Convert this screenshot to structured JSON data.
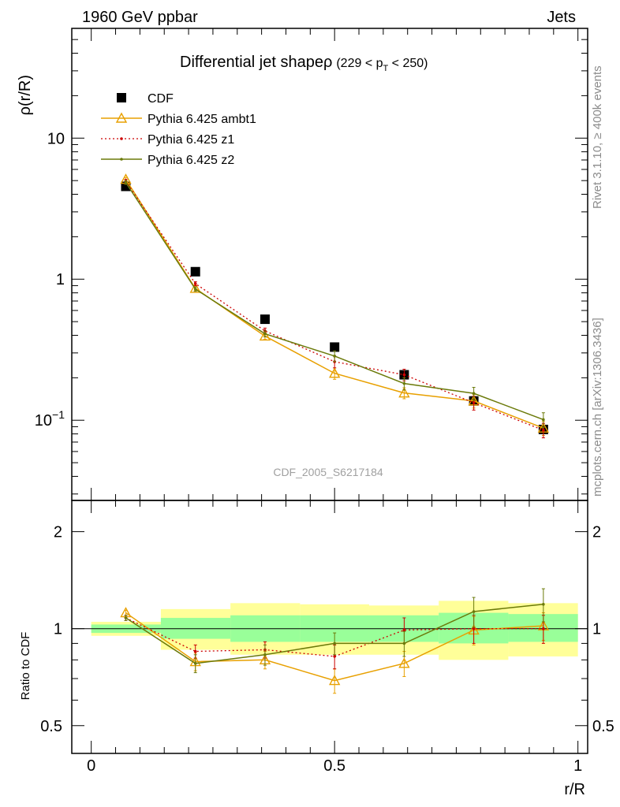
{
  "header": {
    "left": "1960 GeV ppbar",
    "right": "Jets"
  },
  "side_text": {
    "rivet": "Rivet 3.1.10, ≥ 400k events",
    "mcplots": "mcplots.cern.ch [arXiv:1306.3436]"
  },
  "title": {
    "main": "Differential jet shapeρ",
    "cut_pre": "(229 < p",
    "cut_sub": "T",
    "cut_post": " < 250)"
  },
  "watermark": "CDF_2005_S6217184",
  "axis_labels": {
    "ylabel_main": "ρ(r/R)",
    "ylabel_ratio": "Ratio to CDF",
    "xlabel": "r/R"
  },
  "colors": {
    "ambt1": "#e8a000",
    "z1": "#cc0000",
    "z2": "#6b7a0a",
    "band_inner": "#99ff99",
    "band_outer": "#ffff99"
  },
  "chart_data": [
    {
      "type": "scatter",
      "panel": "main",
      "xlabel": "r/R",
      "ylabel": "ρ(r/R)",
      "yscale": "log",
      "xlim": [
        -0.04,
        1.02
      ],
      "ylim": [
        0.027,
        60
      ],
      "y_ticks": [
        {
          "value": 0.1,
          "base": "10",
          "exp": "−1"
        },
        {
          "value": 1,
          "base": "1",
          "exp": ""
        },
        {
          "value": 10,
          "base": "10",
          "exp": ""
        }
      ],
      "legend_position": "top-left",
      "x": [
        0.071,
        0.214,
        0.357,
        0.5,
        0.643,
        0.786,
        0.929
      ],
      "series": [
        {
          "name": "CDF",
          "key": "cdf",
          "values": [
            4.55,
            1.13,
            0.52,
            0.33,
            0.21,
            0.137,
            0.086
          ]
        },
        {
          "name": "Pythia 6.425 ambt1",
          "key": "ambt1",
          "values": [
            5.1,
            0.86,
            0.395,
            0.215,
            0.156,
            0.137,
            0.088
          ],
          "errors": [
            0.15,
            0.03,
            0.02,
            0.02,
            0.014,
            0.015,
            0.01
          ]
        },
        {
          "name": "Pythia 6.425 z1",
          "key": "z1",
          "values": [
            4.95,
            0.93,
            0.43,
            0.26,
            0.21,
            0.133,
            0.085
          ],
          "errors": [
            0.15,
            0.03,
            0.02,
            0.025,
            0.02,
            0.015,
            0.01
          ]
        },
        {
          "name": "Pythia 6.425 z2",
          "key": "z2",
          "values": [
            4.85,
            0.85,
            0.41,
            0.285,
            0.182,
            0.155,
            0.101
          ],
          "errors": [
            0.15,
            0.03,
            0.02,
            0.025,
            0.018,
            0.016,
            0.012
          ]
        }
      ]
    },
    {
      "type": "line",
      "panel": "ratio",
      "xlabel": "r/R",
      "ylabel": "Ratio to CDF",
      "yscale": "log",
      "xlim": [
        -0.04,
        1.02
      ],
      "ylim": [
        0.41,
        2.5
      ],
      "x_ticks": [
        0,
        0.5,
        1
      ],
      "x_tick_labels": [
        "0",
        "0.5",
        "1"
      ],
      "y_ticks": [
        0.5,
        1,
        2
      ],
      "y_tick_labels": [
        "0.5",
        "1",
        "2"
      ],
      "bins": [
        {
          "x0": 0.0,
          "x1": 0.143,
          "inner": [
            0.97,
            1.03
          ],
          "outer": [
            0.95,
            1.05
          ]
        },
        {
          "x0": 0.143,
          "x1": 0.286,
          "inner": [
            0.93,
            1.08
          ],
          "outer": [
            0.86,
            1.15
          ]
        },
        {
          "x0": 0.286,
          "x1": 0.429,
          "inner": [
            0.91,
            1.1
          ],
          "outer": [
            0.83,
            1.2
          ]
        },
        {
          "x0": 0.429,
          "x1": 0.571,
          "inner": [
            0.91,
            1.1
          ],
          "outer": [
            0.83,
            1.19
          ]
        },
        {
          "x0": 0.571,
          "x1": 0.714,
          "inner": [
            0.91,
            1.1
          ],
          "outer": [
            0.83,
            1.18
          ]
        },
        {
          "x0": 0.714,
          "x1": 0.857,
          "inner": [
            0.9,
            1.12
          ],
          "outer": [
            0.8,
            1.22
          ]
        },
        {
          "x0": 0.857,
          "x1": 1.0,
          "inner": [
            0.91,
            1.11
          ],
          "outer": [
            0.82,
            1.2
          ]
        }
      ],
      "x": [
        0.071,
        0.214,
        0.357,
        0.5,
        0.643,
        0.786,
        0.929
      ],
      "series": [
        {
          "name": "Pythia 6.425 ambt1",
          "key": "ambt1",
          "values": [
            1.12,
            0.79,
            0.8,
            0.69,
            0.78,
            0.99,
            1.02
          ],
          "errors": [
            0.02,
            0.05,
            0.05,
            0.06,
            0.07,
            0.1,
            0.1
          ]
        },
        {
          "name": "Pythia 6.425 z1",
          "key": "z1",
          "values": [
            1.08,
            0.85,
            0.86,
            0.82,
            0.99,
            1.0,
            1.0
          ],
          "errors": [
            0.02,
            0.04,
            0.05,
            0.07,
            0.09,
            0.1,
            0.1
          ]
        },
        {
          "name": "Pythia 6.425 z2",
          "key": "z2",
          "values": [
            1.08,
            0.78,
            0.83,
            0.9,
            0.9,
            1.13,
            1.19
          ],
          "errors": [
            0.02,
            0.05,
            0.06,
            0.07,
            0.08,
            0.12,
            0.14
          ]
        }
      ]
    }
  ]
}
